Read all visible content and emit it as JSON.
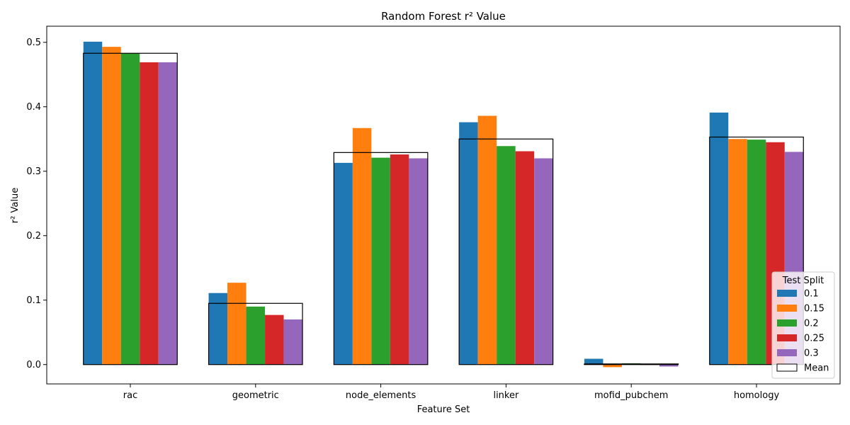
{
  "chart_data": {
    "type": "bar",
    "title": "Random Forest r² Value",
    "xlabel": "Feature Set",
    "ylabel": "r² Value",
    "ylim": [
      -0.03,
      0.525
    ],
    "yticks": [
      0.0,
      0.1,
      0.2,
      0.3,
      0.4,
      0.5
    ],
    "ytick_labels": [
      "0.0",
      "0.1",
      "0.2",
      "0.3",
      "0.4",
      "0.5"
    ],
    "categories": [
      "rac",
      "geometric",
      "node_elements",
      "linker",
      "mofid_pubchem",
      "homology"
    ],
    "legend": {
      "title": "Test Split",
      "placement": "bottom-right"
    },
    "series": [
      {
        "name": "0.1",
        "color": "#1f77b4",
        "values": [
          0.501,
          0.111,
          0.313,
          0.376,
          0.009,
          0.391
        ]
      },
      {
        "name": "0.15",
        "color": "#ff7f0e",
        "values": [
          0.493,
          0.127,
          0.367,
          0.386,
          -0.004,
          0.35
        ]
      },
      {
        "name": "0.2",
        "color": "#2ca02c",
        "values": [
          0.483,
          0.09,
          0.321,
          0.339,
          0.002,
          0.349
        ]
      },
      {
        "name": "0.25",
        "color": "#d62728",
        "values": [
          0.469,
          0.077,
          0.326,
          0.331,
          0.0,
          0.345
        ]
      },
      {
        "name": "0.3",
        "color": "#9467bd",
        "values": [
          0.469,
          0.07,
          0.32,
          0.32,
          -0.003,
          0.33
        ]
      }
    ],
    "mean": {
      "name": "Mean",
      "edge_color": "#000000",
      "values": [
        0.483,
        0.095,
        0.329,
        0.35,
        0.001,
        0.353
      ]
    }
  }
}
